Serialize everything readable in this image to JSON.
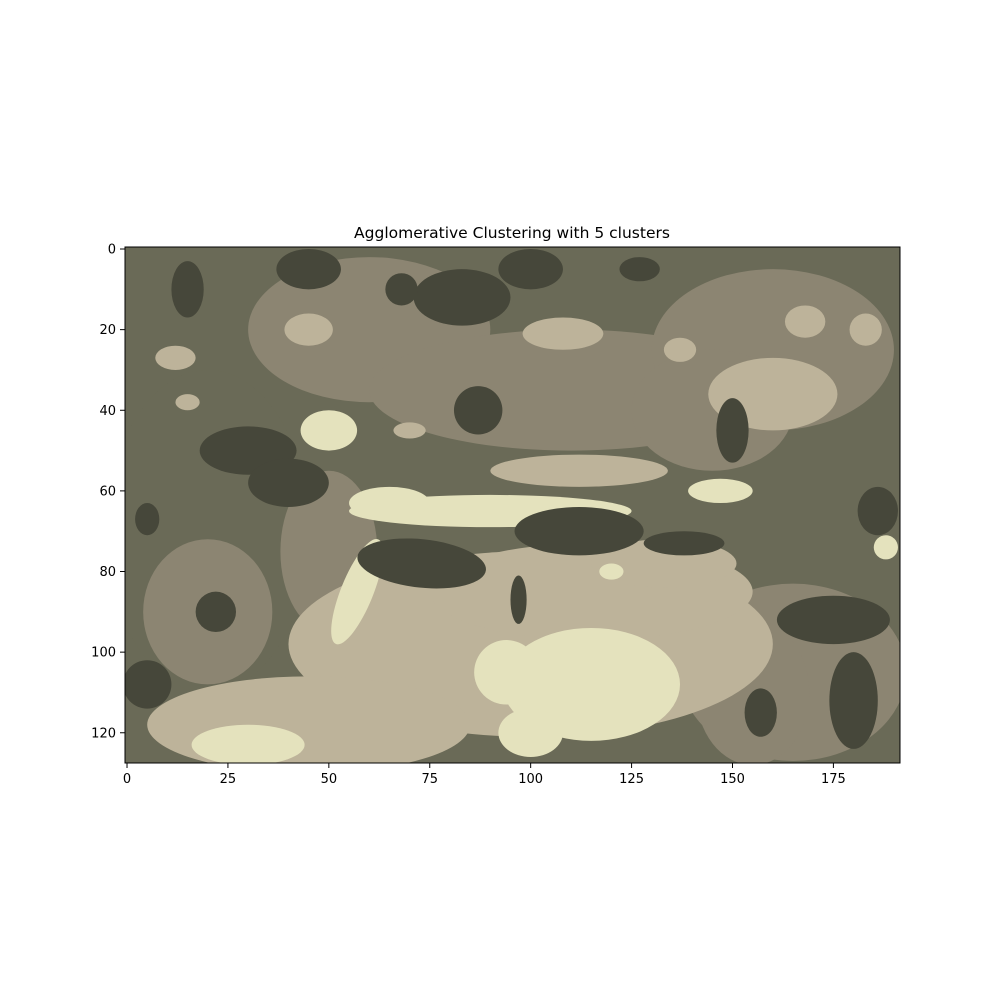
{
  "chart_data": {
    "type": "heatmap",
    "title": "Agglomerative Clustering with 5 clusters",
    "xlabel": "",
    "ylabel": "",
    "xlim": [
      -0.5,
      191.5
    ],
    "ylim": [
      127.5,
      -0.5
    ],
    "x_ticks": [
      0,
      25,
      50,
      75,
      100,
      125,
      150,
      175
    ],
    "y_ticks": [
      0,
      20,
      40,
      60,
      80,
      100,
      120
    ],
    "grid": false,
    "legend": "none",
    "n_clusters": 5,
    "image_width": 192,
    "image_height": 128,
    "cluster_colors": [
      "#46473a",
      "#6a6a57",
      "#8c8572",
      "#bdb39a",
      "#e4e2bd"
    ],
    "background_cluster": 1,
    "regions": [
      {
        "cluster": 1,
        "shape": "ellipse",
        "cx": 20,
        "cy": 70,
        "rx": 25,
        "ry": 40
      },
      {
        "cluster": 2,
        "shape": "ellipse",
        "cx": 20,
        "cy": 90,
        "rx": 16,
        "ry": 18
      },
      {
        "cluster": 2,
        "shape": "ellipse",
        "cx": 60,
        "cy": 20,
        "rx": 30,
        "ry": 18
      },
      {
        "cluster": 2,
        "shape": "ellipse",
        "cx": 110,
        "cy": 35,
        "rx": 50,
        "ry": 15
      },
      {
        "cluster": 2,
        "shape": "ellipse",
        "cx": 160,
        "cy": 25,
        "rx": 30,
        "ry": 20
      },
      {
        "cluster": 2,
        "shape": "ellipse",
        "cx": 145,
        "cy": 40,
        "rx": 20,
        "ry": 15
      },
      {
        "cluster": 2,
        "shape": "ellipse",
        "cx": 165,
        "cy": 105,
        "rx": 28,
        "ry": 22
      },
      {
        "cluster": 2,
        "shape": "ellipse",
        "cx": 50,
        "cy": 75,
        "rx": 12,
        "ry": 20
      },
      {
        "cluster": 2,
        "shape": "ellipse",
        "cx": 155,
        "cy": 110,
        "rx": 14,
        "ry": 18
      },
      {
        "cluster": 3,
        "shape": "ellipse",
        "cx": 100,
        "cy": 98,
        "rx": 60,
        "ry": 23
      },
      {
        "cluster": 3,
        "shape": "ellipse",
        "cx": 45,
        "cy": 118,
        "rx": 40,
        "ry": 12
      },
      {
        "cluster": 3,
        "shape": "ellipse",
        "cx": 115,
        "cy": 85,
        "rx": 40,
        "ry": 12
      },
      {
        "cluster": 3,
        "shape": "ellipse",
        "cx": 133,
        "cy": 78,
        "rx": 18,
        "ry": 6
      },
      {
        "cluster": 3,
        "shape": "ellipse",
        "cx": 112,
        "cy": 55,
        "rx": 22,
        "ry": 4
      },
      {
        "cluster": 3,
        "shape": "ellipse",
        "cx": 160,
        "cy": 36,
        "rx": 16,
        "ry": 9
      },
      {
        "cluster": 3,
        "shape": "ellipse",
        "cx": 168,
        "cy": 18,
        "rx": 5,
        "ry": 4
      },
      {
        "cluster": 3,
        "shape": "ellipse",
        "cx": 108,
        "cy": 21,
        "rx": 10,
        "ry": 4
      },
      {
        "cluster": 3,
        "shape": "ellipse",
        "cx": 45,
        "cy": 20,
        "rx": 6,
        "ry": 4
      },
      {
        "cluster": 3,
        "shape": "ellipse",
        "cx": 12,
        "cy": 27,
        "rx": 5,
        "ry": 3
      },
      {
        "cluster": 3,
        "shape": "ellipse",
        "cx": 70,
        "cy": 45,
        "rx": 4,
        "ry": 2
      },
      {
        "cluster": 3,
        "shape": "ellipse",
        "cx": 183,
        "cy": 20,
        "rx": 4,
        "ry": 4
      },
      {
        "cluster": 3,
        "shape": "ellipse",
        "cx": 137,
        "cy": 25,
        "rx": 4,
        "ry": 3
      },
      {
        "cluster": 3,
        "shape": "ellipse",
        "cx": 15,
        "cy": 38,
        "rx": 3,
        "ry": 2
      },
      {
        "cluster": 4,
        "shape": "ellipse",
        "cx": 115,
        "cy": 108,
        "rx": 22,
        "ry": 14
      },
      {
        "cluster": 4,
        "shape": "ellipse",
        "cx": 90,
        "cy": 65,
        "rx": 35,
        "ry": 4
      },
      {
        "cluster": 4,
        "shape": "ellipse",
        "cx": 65,
        "cy": 63,
        "rx": 10,
        "ry": 4
      },
      {
        "cluster": 4,
        "shape": "ellipse",
        "cx": 57,
        "cy": 85,
        "rx": 4,
        "ry": 14,
        "rotate": 22
      },
      {
        "cluster": 4,
        "shape": "ellipse",
        "cx": 94,
        "cy": 105,
        "rx": 8,
        "ry": 8
      },
      {
        "cluster": 4,
        "shape": "ellipse",
        "cx": 30,
        "cy": 123,
        "rx": 14,
        "ry": 5
      },
      {
        "cluster": 4,
        "shape": "ellipse",
        "cx": 50,
        "cy": 45,
        "rx": 7,
        "ry": 5
      },
      {
        "cluster": 4,
        "shape": "ellipse",
        "cx": 147,
        "cy": 60,
        "rx": 8,
        "ry": 3
      },
      {
        "cluster": 4,
        "shape": "ellipse",
        "cx": 120,
        "cy": 80,
        "rx": 3,
        "ry": 2
      },
      {
        "cluster": 4,
        "shape": "ellipse",
        "cx": 188,
        "cy": 74,
        "rx": 3,
        "ry": 3
      },
      {
        "cluster": 4,
        "shape": "ellipse",
        "cx": 100,
        "cy": 120,
        "rx": 8,
        "ry": 6
      },
      {
        "cluster": 0,
        "shape": "ellipse",
        "cx": 73,
        "cy": 78,
        "rx": 16,
        "ry": 6,
        "rotate": 6
      },
      {
        "cluster": 0,
        "shape": "ellipse",
        "cx": 112,
        "cy": 70,
        "rx": 16,
        "ry": 6
      },
      {
        "cluster": 0,
        "shape": "ellipse",
        "cx": 138,
        "cy": 73,
        "rx": 10,
        "ry": 3
      },
      {
        "cluster": 0,
        "shape": "ellipse",
        "cx": 97,
        "cy": 87,
        "rx": 2,
        "ry": 6
      },
      {
        "cluster": 0,
        "shape": "ellipse",
        "cx": 30,
        "cy": 50,
        "rx": 12,
        "ry": 6
      },
      {
        "cluster": 0,
        "shape": "ellipse",
        "cx": 40,
        "cy": 58,
        "rx": 10,
        "ry": 6
      },
      {
        "cluster": 0,
        "shape": "ellipse",
        "cx": 15,
        "cy": 10,
        "rx": 4,
        "ry": 7
      },
      {
        "cluster": 0,
        "shape": "ellipse",
        "cx": 83,
        "cy": 12,
        "rx": 12,
        "ry": 7
      },
      {
        "cluster": 0,
        "shape": "ellipse",
        "cx": 45,
        "cy": 5,
        "rx": 8,
        "ry": 5
      },
      {
        "cluster": 0,
        "shape": "ellipse",
        "cx": 87,
        "cy": 40,
        "rx": 6,
        "ry": 6
      },
      {
        "cluster": 0,
        "shape": "ellipse",
        "cx": 100,
        "cy": 5,
        "rx": 8,
        "ry": 5
      },
      {
        "cluster": 0,
        "shape": "ellipse",
        "cx": 175,
        "cy": 92,
        "rx": 14,
        "ry": 6
      },
      {
        "cluster": 0,
        "shape": "ellipse",
        "cx": 180,
        "cy": 112,
        "rx": 6,
        "ry": 12
      },
      {
        "cluster": 0,
        "shape": "ellipse",
        "cx": 186,
        "cy": 65,
        "rx": 5,
        "ry": 6
      },
      {
        "cluster": 0,
        "shape": "ellipse",
        "cx": 150,
        "cy": 45,
        "rx": 4,
        "ry": 8
      },
      {
        "cluster": 0,
        "shape": "ellipse",
        "cx": 22,
        "cy": 90,
        "rx": 5,
        "ry": 5
      },
      {
        "cluster": 0,
        "shape": "ellipse",
        "cx": 5,
        "cy": 108,
        "rx": 6,
        "ry": 6
      },
      {
        "cluster": 0,
        "shape": "ellipse",
        "cx": 68,
        "cy": 10,
        "rx": 4,
        "ry": 4
      },
      {
        "cluster": 0,
        "shape": "ellipse",
        "cx": 127,
        "cy": 5,
        "rx": 5,
        "ry": 3
      },
      {
        "cluster": 0,
        "shape": "ellipse",
        "cx": 157,
        "cy": 115,
        "rx": 4,
        "ry": 6
      },
      {
        "cluster": 0,
        "shape": "ellipse",
        "cx": 5,
        "cy": 67,
        "rx": 3,
        "ry": 4
      }
    ]
  }
}
